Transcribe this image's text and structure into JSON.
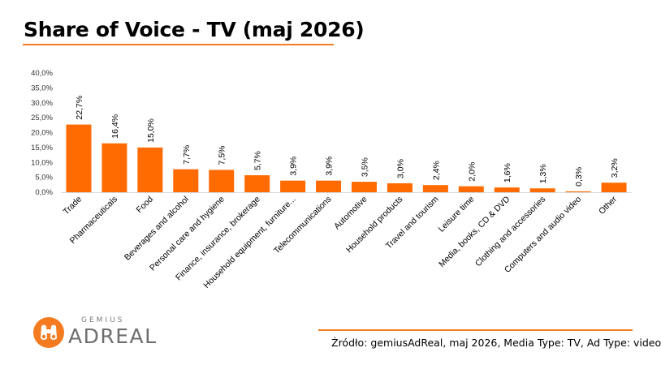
{
  "header": {
    "title": "Share of Voice - TV (maj 2026)"
  },
  "chart_data": {
    "type": "bar",
    "title": "Share of Voice - TV (maj 2026)",
    "categories": [
      "Trade",
      "Pharmaceuticals",
      "Food",
      "Beverages and alcohol",
      "Personal care and hygiene",
      "Finance, insurance, brokerage",
      "Household equipment, furniture...",
      "Telecommunications",
      "Automotive",
      "Household products",
      "Travel and tourism",
      "Leisure time",
      "Media, books, CD & DVD",
      "Clothing and accessories",
      "Computers and audio video",
      "Other"
    ],
    "values": [
      22.7,
      16.4,
      15.0,
      7.7,
      7.5,
      5.7,
      3.9,
      3.9,
      3.5,
      3.0,
      2.4,
      2.0,
      1.6,
      1.3,
      0.3,
      3.2
    ],
    "value_labels": [
      "22,7%",
      "16,4%",
      "15,0%",
      "7,7%",
      "7,5%",
      "5,7%",
      "3,9%",
      "3,9%",
      "3,5%",
      "3,0%",
      "2,4%",
      "2,0%",
      "1,6%",
      "1,3%",
      "0,3%",
      "3,2%"
    ],
    "yticks": [
      "0,0%",
      "5,0%",
      "10,0%",
      "15,0%",
      "20,0%",
      "25,0%",
      "30,0%",
      "35,0%",
      "40,0%"
    ],
    "ylim": [
      0,
      40
    ],
    "xlabel": "",
    "ylabel": "",
    "grid": false,
    "legend": "none",
    "bar_color": "#ff6b00"
  },
  "logo": {
    "small_text": "GEMIUS",
    "big_text": "ADREAL",
    "accent_color": "#f47b20"
  },
  "footer": {
    "source": "Źródło: gemiusAdReal, maj 2026, Media Type: TV, Ad Type: video"
  },
  "colors": {
    "accent": "#f47b20",
    "bar": "#ff6b00"
  }
}
